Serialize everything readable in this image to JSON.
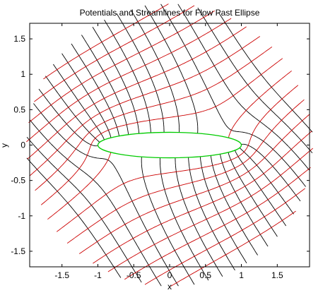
{
  "chart_data": {
    "type": "line",
    "title": "Potentials and Streamlines for Flow Past Ellipse",
    "xlabel": "x",
    "ylabel": "y",
    "xlim": [
      -1.95,
      1.95
    ],
    "ylim": [
      -1.72,
      1.72
    ],
    "xticks": [
      -1.5,
      -1,
      -0.5,
      0,
      0.5,
      1,
      1.5
    ],
    "xtick_labels": [
      "-1.5",
      "-1",
      "-0.5",
      "0",
      "0.5",
      "1",
      "1.5"
    ],
    "yticks": [
      -1.5,
      -1,
      -0.5,
      0,
      0.5,
      1,
      1.5
    ],
    "ytick_labels": [
      "-1.5",
      "-1",
      "-0.5",
      "0",
      "0.5",
      "1",
      "1.5"
    ],
    "grid": false,
    "ellipse": {
      "a": 1,
      "b": 0.18,
      "color": "#00cc00"
    },
    "potential_lines": {
      "color": "#000000",
      "values": [
        -1.8,
        -1.6,
        -1.4,
        -1.2,
        -1.0,
        -0.8,
        -0.6,
        -0.4,
        -0.2,
        0,
        0.2,
        0.4,
        0.6,
        0.8,
        1.0,
        1.2,
        1.4,
        1.6,
        1.8
      ]
    },
    "streamlines": {
      "color": "#cc0000",
      "values": [
        -1.6,
        -1.4,
        -1.2,
        -1.0,
        -0.8,
        -0.6,
        -0.4,
        -0.2,
        0,
        0.2,
        0.4,
        0.6,
        0.8,
        1.0,
        1.2,
        1.4,
        1.6
      ]
    },
    "flow_angle_deg": 35,
    "domain_radius": 2.0
  }
}
